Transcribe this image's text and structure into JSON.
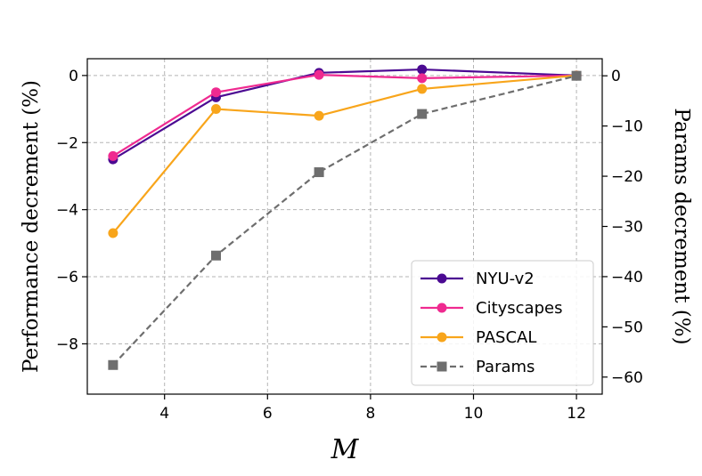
{
  "chart_data": {
    "type": "line",
    "xlabel": "M",
    "ylabel": "Performance decrement (%)",
    "y2label": "Params decrement (%)",
    "xlim": [
      2.5,
      12.5
    ],
    "ylim": [
      -9.5,
      0.5
    ],
    "y2lim": [
      -63.4,
      3.4
    ],
    "x_ticks": [
      4,
      6,
      8,
      10,
      12
    ],
    "x_tick_labels": [
      "4",
      "6",
      "8",
      "10",
      "12"
    ],
    "y_ticks": [
      0,
      -2,
      -4,
      -6,
      -8
    ],
    "y_tick_labels": [
      "0",
      "−2",
      "−4",
      "−6",
      "−8"
    ],
    "y2_ticks": [
      0,
      -10,
      -20,
      -30,
      -40,
      -50,
      -60
    ],
    "y2_tick_labels": [
      "0",
      "−10",
      "−20",
      "−30",
      "−40",
      "−50",
      "−60"
    ],
    "grid": true,
    "legend_position": "bottom-right",
    "x": [
      3,
      5,
      7,
      9,
      12
    ],
    "series": [
      {
        "name": "NYU-v2",
        "axis": "left",
        "color": "#4b0a92",
        "marker": "circle",
        "dashed": false,
        "values": [
          -2.5,
          -0.65,
          0.08,
          0.18,
          0.0
        ]
      },
      {
        "name": "Cityscapes",
        "axis": "left",
        "color": "#ef2a90",
        "marker": "circle",
        "dashed": false,
        "values": [
          -2.4,
          -0.5,
          0.02,
          -0.08,
          0.0
        ]
      },
      {
        "name": "PASCAL",
        "axis": "left",
        "color": "#f8a51b",
        "marker": "circle",
        "dashed": false,
        "values": [
          -4.7,
          -1.0,
          -1.2,
          -0.4,
          0.0
        ]
      },
      {
        "name": "Params",
        "axis": "right",
        "color": "#6e6e6e",
        "marker": "square",
        "dashed": true,
        "values": [
          -57.6,
          -35.8,
          -19.2,
          -7.6,
          0.0
        ]
      }
    ]
  }
}
